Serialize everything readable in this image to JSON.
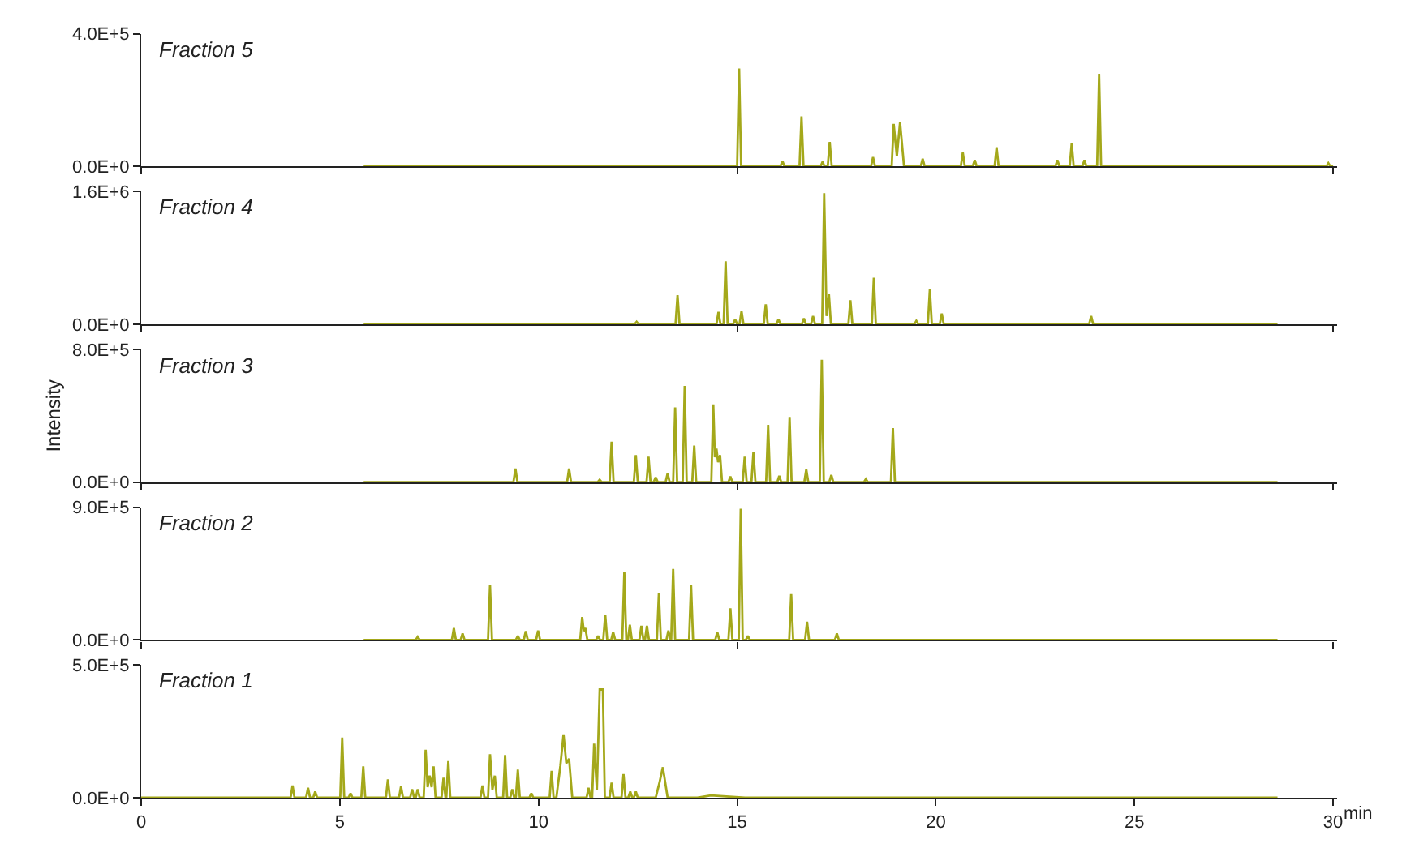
{
  "chart_data": [
    {
      "type": "line",
      "title": "Fraction 5",
      "xlim": [
        0,
        30.1
      ],
      "xticks": [
        {
          "value": 0,
          "label": null
        },
        {
          "value": 15,
          "label": null
        },
        {
          "value": 30,
          "label": null
        }
      ],
      "ylim": [
        0,
        400000
      ],
      "yticks": [
        {
          "value": 0,
          "label": "0.0E+0"
        },
        {
          "value": 400000,
          "label": "4.0E+5"
        }
      ],
      "tick_labels": "y",
      "series": [
        {
          "color": "#a4a81a",
          "x": [
            5.6,
            15.0,
            15.05,
            15.1,
            16.09,
            16.14,
            16.19,
            16.57,
            16.62,
            16.67,
            17.1,
            17.15,
            17.2,
            17.28,
            17.33,
            17.38,
            18.37,
            18.42,
            18.47,
            18.89,
            18.94,
            19.02,
            19.1,
            19.2,
            19.62,
            19.67,
            19.72,
            20.63,
            20.68,
            20.73,
            20.93,
            20.98,
            21.03,
            21.48,
            21.53,
            21.58,
            23.01,
            23.06,
            23.11,
            23.37,
            23.42,
            23.47,
            23.69,
            23.74,
            23.79,
            24.06,
            24.11,
            24.16,
            29.83,
            29.88,
            29.93,
            30.0
          ],
          "values": [
            0,
            0,
            295000,
            0,
            0,
            16000,
            0,
            0,
            151000,
            0,
            0,
            14000,
            0,
            0,
            74000,
            0,
            0,
            28000,
            0,
            0,
            128000,
            30000,
            133000,
            0,
            0,
            23000,
            0,
            0,
            42000,
            0,
            0,
            19000,
            0,
            0,
            58000,
            0,
            0,
            19000,
            0,
            0,
            70000,
            0,
            0,
            19000,
            0,
            0,
            279000,
            0,
            0,
            10000,
            0,
            0
          ]
        }
      ]
    },
    {
      "type": "line",
      "title": "Fraction 4",
      "xlim": [
        0,
        30.1
      ],
      "xticks": [
        {
          "value": 0,
          "label": null
        },
        {
          "value": 15,
          "label": null
        },
        {
          "value": 30,
          "label": null
        }
      ],
      "ylim": [
        0,
        1600000
      ],
      "yticks": [
        {
          "value": 0,
          "label": "0.0E+0"
        },
        {
          "value": 1600000,
          "label": "1.6E+6"
        }
      ],
      "tick_labels": "y",
      "series": [
        {
          "color": "#a4a81a",
          "x": [
            5.6,
            12.42,
            12.47,
            12.52,
            13.45,
            13.5,
            13.55,
            14.48,
            14.53,
            14.58,
            14.66,
            14.71,
            14.76,
            14.9,
            14.95,
            15.0,
            15.06,
            15.11,
            15.16,
            15.67,
            15.72,
            15.77,
            15.99,
            16.04,
            16.09,
            16.63,
            16.68,
            16.73,
            16.86,
            16.91,
            16.96,
            17.14,
            17.19,
            17.25,
            17.31,
            17.36,
            17.8,
            17.85,
            17.9,
            18.39,
            18.44,
            18.49,
            19.46,
            19.51,
            19.56,
            19.8,
            19.85,
            19.9,
            20.1,
            20.15,
            20.2,
            23.86,
            23.91,
            23.96,
            28.6
          ],
          "values": [
            0,
            0,
            30000,
            0,
            0,
            350000,
            0,
            0,
            150000,
            0,
            0,
            760000,
            0,
            0,
            60000,
            0,
            0,
            160000,
            0,
            0,
            240000,
            0,
            0,
            60000,
            0,
            0,
            70000,
            0,
            0,
            100000,
            0,
            0,
            1580000,
            100000,
            360000,
            0,
            0,
            290000,
            0,
            0,
            560000,
            0,
            0,
            40000,
            0,
            0,
            420000,
            0,
            0,
            130000,
            0,
            0,
            100000,
            0,
            0
          ]
        }
      ]
    },
    {
      "type": "line",
      "title": "Fraction 3",
      "ylabel": "Intensity",
      "xlim": [
        0,
        30.1
      ],
      "xticks": [
        {
          "value": 0,
          "label": null
        },
        {
          "value": 15,
          "label": null
        },
        {
          "value": 30,
          "label": null
        }
      ],
      "ylim": [
        0,
        800000
      ],
      "yticks": [
        {
          "value": 0,
          "label": "0.0E+0"
        },
        {
          "value": 800000,
          "label": "8.0E+5"
        }
      ],
      "tick_labels": "y",
      "series": [
        {
          "color": "#a4a81a",
          "x": [
            5.6,
            9.37,
            9.42,
            9.47,
            10.72,
            10.77,
            10.82,
            11.49,
            11.54,
            11.59,
            11.79,
            11.84,
            11.89,
            12.4,
            12.45,
            12.5,
            12.72,
            12.77,
            12.82,
            12.9,
            12.95,
            13.0,
            13.2,
            13.25,
            13.3,
            13.39,
            13.44,
            13.49,
            13.63,
            13.68,
            13.73,
            13.87,
            13.92,
            13.97,
            14.35,
            14.4,
            14.44,
            14.48,
            14.52,
            14.57,
            14.62,
            14.78,
            14.83,
            14.88,
            15.14,
            15.19,
            15.24,
            15.36,
            15.41,
            15.46,
            15.73,
            15.78,
            15.83,
            16.01,
            16.06,
            16.11,
            16.27,
            16.32,
            16.37,
            16.69,
            16.74,
            16.79,
            17.08,
            17.13,
            17.18,
            17.32,
            17.37,
            17.42,
            18.19,
            18.24,
            18.29,
            18.87,
            18.92,
            18.97,
            28.6
          ],
          "values": [
            0,
            0,
            81000,
            0,
            0,
            81000,
            0,
            0,
            14000,
            0,
            0,
            244000,
            0,
            0,
            163000,
            0,
            0,
            153000,
            0,
            0,
            29000,
            0,
            0,
            53000,
            0,
            0,
            450000,
            0,
            0,
            580000,
            0,
            0,
            220000,
            0,
            0,
            469000,
            150000,
            201000,
            120000,
            163000,
            0,
            0,
            34000,
            0,
            0,
            153000,
            0,
            0,
            182000,
            0,
            0,
            345000,
            0,
            0,
            38000,
            0,
            0,
            393000,
            0,
            0,
            77000,
            0,
            0,
            738000,
            0,
            0,
            43000,
            0,
            0,
            19000,
            0,
            0,
            326000,
            0,
            0
          ]
        }
      ]
    },
    {
      "type": "line",
      "title": "Fraction 2",
      "xlim": [
        0,
        30.1
      ],
      "xticks": [
        {
          "value": 0,
          "label": null
        },
        {
          "value": 15,
          "label": null
        },
        {
          "value": 30,
          "label": null
        }
      ],
      "ylim": [
        0,
        900000
      ],
      "yticks": [
        {
          "value": 0,
          "label": "0.0E+0"
        },
        {
          "value": 900000,
          "label": "9.0E+5"
        }
      ],
      "tick_labels": "y",
      "series": [
        {
          "color": "#a4a81a",
          "x": [
            5.6,
            6.91,
            6.96,
            7.01,
            7.82,
            7.87,
            7.92,
            8.04,
            8.09,
            8.14,
            8.73,
            8.78,
            8.83,
            9.43,
            9.48,
            9.53,
            9.63,
            9.68,
            9.73,
            9.94,
            9.99,
            10.04,
            11.05,
            11.1,
            11.14,
            11.18,
            11.23,
            11.45,
            11.5,
            11.55,
            11.63,
            11.68,
            11.73,
            11.83,
            11.88,
            11.93,
            12.11,
            12.16,
            12.21,
            12.25,
            12.3,
            12.35,
            12.54,
            12.59,
            12.64,
            12.68,
            12.73,
            12.78,
            12.98,
            13.03,
            13.08,
            13.22,
            13.27,
            13.32,
            13.34,
            13.39,
            13.44,
            13.79,
            13.84,
            13.89,
            14.45,
            14.5,
            14.55,
            14.78,
            14.83,
            14.88,
            15.04,
            15.09,
            15.14,
            15.22,
            15.27,
            15.32,
            16.31,
            16.36,
            16.41,
            16.71,
            16.76,
            16.81,
            17.46,
            17.51,
            17.56,
            28.6
          ],
          "values": [
            0,
            0,
            21000,
            0,
            0,
            80000,
            0,
            0,
            43000,
            0,
            0,
            370000,
            0,
            0,
            27000,
            0,
            0,
            59000,
            0,
            0,
            64000,
            0,
            0,
            155000,
            60000,
            80000,
            0,
            0,
            27000,
            0,
            0,
            171000,
            0,
            0,
            54000,
            0,
            0,
            461000,
            0,
            0,
            102000,
            0,
            0,
            96000,
            0,
            0,
            96000,
            0,
            0,
            316000,
            0,
            0,
            64000,
            0,
            0,
            482000,
            0,
            0,
            375000,
            0,
            0,
            54000,
            0,
            0,
            214000,
            0,
            0,
            890000,
            0,
            0,
            27000,
            0,
            0,
            311000,
            0,
            0,
            123000,
            0,
            0,
            43000,
            0,
            0
          ]
        }
      ]
    },
    {
      "type": "line",
      "title": "Fraction 1",
      "xlabel": "min",
      "xlim": [
        0,
        30.1
      ],
      "xticks": [
        0,
        5,
        10,
        15,
        20,
        25,
        30
      ],
      "ylim": [
        0,
        500000
      ],
      "yticks": [
        {
          "value": 0,
          "label": "0.0E+0"
        },
        {
          "value": 500000,
          "label": "5.0E+5"
        }
      ],
      "series": [
        {
          "color": "#a4a81a",
          "x": [
            0,
            3.76,
            3.81,
            3.86,
            4.15,
            4.2,
            4.25,
            4.33,
            4.38,
            4.43,
            5.01,
            5.06,
            5.11,
            5.22,
            5.27,
            5.32,
            5.54,
            5.59,
            5.64,
            6.16,
            6.21,
            6.26,
            6.49,
            6.54,
            6.59,
            6.77,
            6.82,
            6.87,
            6.91,
            6.96,
            7.01,
            7.11,
            7.16,
            7.21,
            7.26,
            7.31,
            7.36,
            7.41,
            7.56,
            7.61,
            7.66,
            7.68,
            7.73,
            7.78,
            8.54,
            8.59,
            8.64,
            8.73,
            8.78,
            8.84,
            8.9,
            8.95,
            9.11,
            9.16,
            9.21,
            9.29,
            9.34,
            9.39,
            9.43,
            9.48,
            9.53,
            9.77,
            9.82,
            9.87,
            10.28,
            10.33,
            10.38,
            10.45,
            10.55,
            10.63,
            10.7,
            10.77,
            10.85,
            11.21,
            11.26,
            11.31,
            11.35,
            11.4,
            11.47,
            11.54,
            11.62,
            11.67,
            11.79,
            11.84,
            11.89,
            12.09,
            12.14,
            12.19,
            12.26,
            12.31,
            12.36,
            12.4,
            12.45,
            12.5,
            12.95,
            13.05,
            13.13,
            13.25,
            14.0,
            14.34,
            15.2,
            28.6
          ],
          "values": [
            0,
            0,
            46000,
            0,
            0,
            37000,
            0,
            0,
            23000,
            0,
            0,
            227000,
            0,
            0,
            17000,
            0,
            0,
            118000,
            0,
            0,
            69000,
            0,
            0,
            43000,
            0,
            0,
            32000,
            0,
            0,
            32000,
            0,
            0,
            181000,
            40000,
            83000,
            40000,
            118000,
            0,
            0,
            75000,
            0,
            0,
            138000,
            0,
            0,
            46000,
            0,
            0,
            164000,
            30000,
            83000,
            0,
            0,
            161000,
            0,
            0,
            32000,
            0,
            0,
            106000,
            0,
            0,
            17000,
            0,
            0,
            101000,
            0,
            0,
            120000,
            239000,
            130000,
            147000,
            0,
            0,
            37000,
            0,
            0,
            204000,
            30000,
            408000,
            408000,
            0,
            0,
            57000,
            0,
            0,
            89000,
            0,
            0,
            23000,
            0,
            0,
            23000,
            0,
            0,
            60000,
            115000,
            0,
            0,
            9000,
            0,
            0
          ]
        }
      ]
    }
  ]
}
